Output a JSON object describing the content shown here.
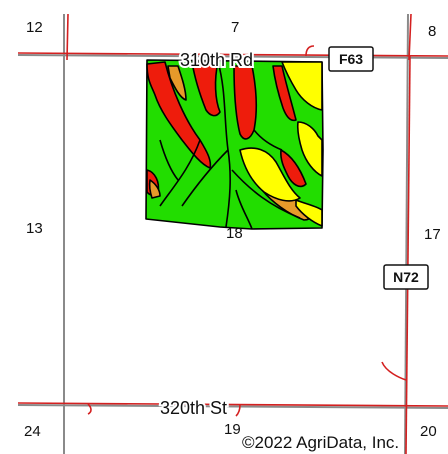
{
  "map": {
    "section_numbers": {
      "s12": "12",
      "s7": "7",
      "s8": "8",
      "s13": "13",
      "s18": "18",
      "s17": "17",
      "s24": "24",
      "s19": "19",
      "s20": "20"
    },
    "roads": {
      "top_road_label": "310th Rd",
      "bottom_road_label": "320th St"
    },
    "route_shields": {
      "f63": "F63",
      "n72": "N72"
    },
    "copyright": "©2022 AgriData, Inc.",
    "colors": {
      "section_line": "#8a8a8a",
      "road_line": "#d42020",
      "soil_green": "#22dd00",
      "soil_red": "#ee1c0c",
      "soil_yellow": "#ffff00",
      "soil_orange": "#e69a2a",
      "soil_outline": "#000000"
    }
  }
}
